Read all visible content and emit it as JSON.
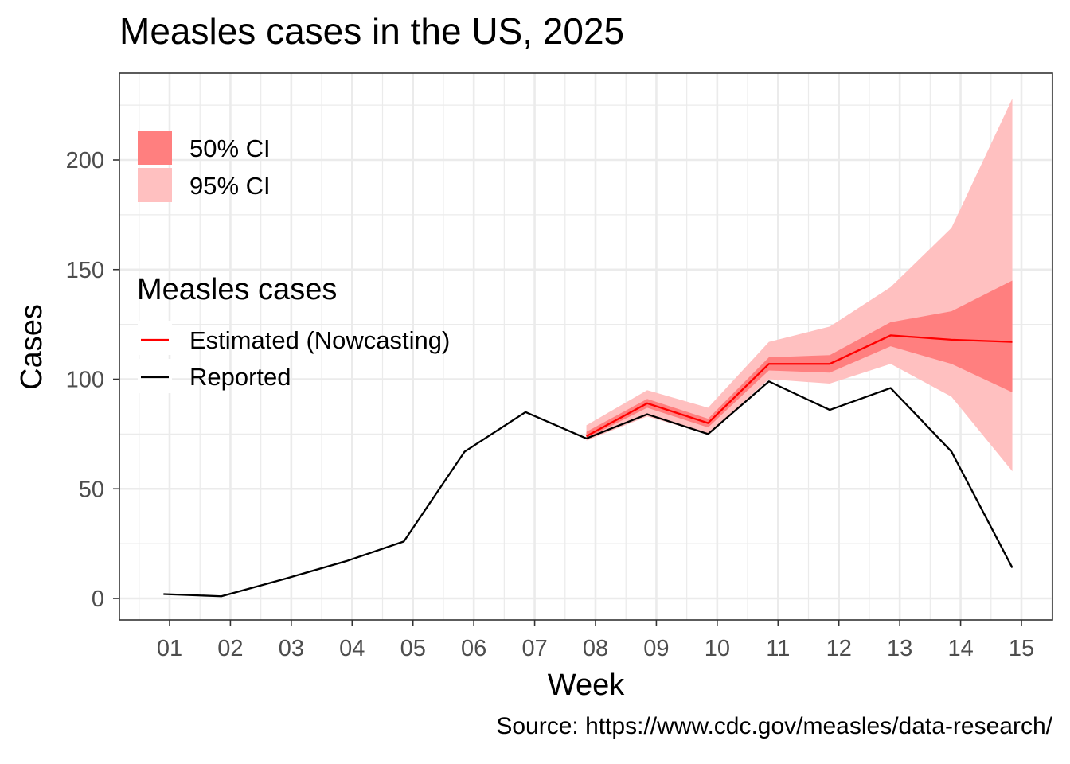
{
  "title": "Measles cases in the US, 2025",
  "caption": "Source: https://www.cdc.gov/measles/data-research/",
  "chart_data": {
    "type": "line",
    "title": "Measles cases in the US, 2025",
    "xlabel": "Week",
    "ylabel": "Cases",
    "x_ticks": [
      "01",
      "02",
      "03",
      "04",
      "05",
      "06",
      "07",
      "08",
      "09",
      "10",
      "11",
      "12",
      "13",
      "14",
      "15"
    ],
    "y_ticks": [
      0,
      50,
      100,
      150,
      200
    ],
    "ylim": [
      -10,
      240
    ],
    "grid": true,
    "legend": {
      "ci_entries": [
        "50% CI",
        "95% CI"
      ],
      "lines_title": "Measles cases",
      "line_entries": [
        "Estimated (Nowcasting)",
        "Reported"
      ],
      "placement": "top-left inside"
    },
    "colors": {
      "reported": "#000000",
      "estimated": "#ff0000",
      "ci50": "#ff7f7f",
      "ci95": "#ffc0c0"
    },
    "series": [
      {
        "name": "Reported",
        "x": [
          0.9,
          1.85,
          2.9,
          3.9,
          4.85,
          5.85,
          6.85,
          7.85,
          8.85,
          9.85,
          10.85,
          11.85,
          12.85,
          13.85,
          14.85
        ],
        "values": [
          2,
          1,
          9,
          17,
          26,
          67,
          85,
          73,
          84,
          75,
          99,
          86,
          96,
          67,
          14
        ]
      },
      {
        "name": "Estimated (Nowcasting)",
        "x": [
          7.85,
          8.85,
          9.85,
          10.85,
          11.85,
          12.85,
          13.85,
          14.85
        ],
        "values": [
          74,
          89,
          80,
          107,
          107,
          120,
          118,
          117
        ]
      }
    ],
    "intervals": [
      {
        "name": "95% CI",
        "x": [
          7.85,
          8.85,
          9.85,
          10.85,
          11.85,
          12.85,
          13.85,
          14.85
        ],
        "lower": [
          72,
          83,
          75,
          100,
          98,
          107,
          92,
          58
        ],
        "upper": [
          79,
          95,
          87,
          117,
          124,
          142,
          169,
          228
        ]
      },
      {
        "name": "50% CI",
        "x": [
          7.85,
          8.85,
          9.85,
          10.85,
          11.85,
          12.85,
          13.85,
          14.85
        ],
        "lower": [
          73,
          87,
          78,
          104,
          103,
          115,
          107,
          94
        ],
        "upper": [
          76,
          91,
          82,
          110,
          111,
          126,
          131,
          145
        ]
      }
    ]
  }
}
